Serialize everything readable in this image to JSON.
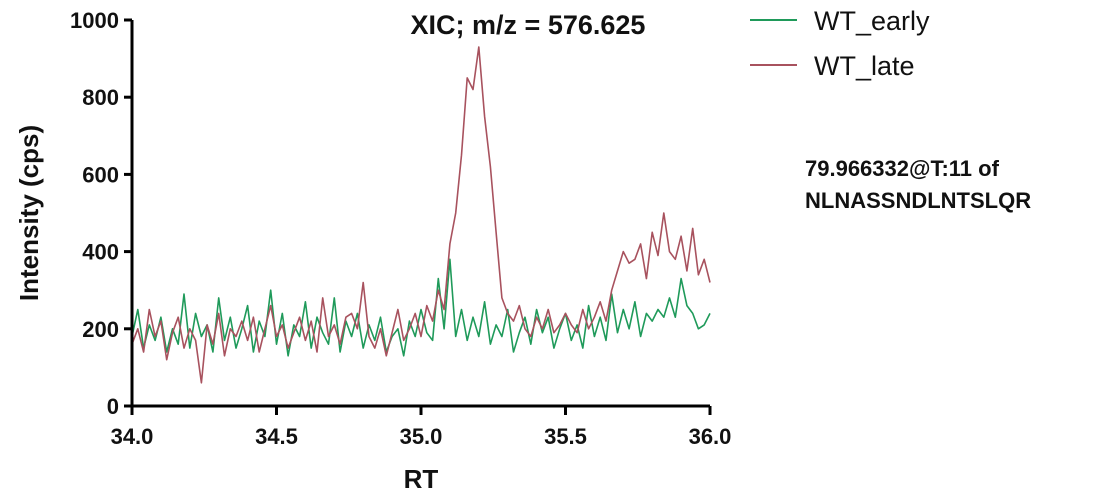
{
  "chart_data": {
    "type": "line",
    "title": "XIC; m/z = 576.625",
    "xlabel": "RT",
    "ylabel": "Intensity (cps)",
    "xlim": [
      34.0,
      36.0
    ],
    "ylim": [
      0,
      1000
    ],
    "xticks": [
      34.0,
      34.5,
      35.0,
      35.5,
      36.0
    ],
    "xtick_labels": [
      "34.0",
      "34.5",
      "35.0",
      "35.5",
      "36.0"
    ],
    "yticks": [
      0,
      200,
      400,
      600,
      800,
      1000
    ],
    "ytick_labels": [
      "0",
      "200",
      "400",
      "600",
      "800",
      "1000"
    ],
    "grid": false,
    "legend_position": "top-right",
    "series": [
      {
        "name": "WT_early",
        "color": "#1f9a5a",
        "x": [
          34.0,
          34.02,
          34.04,
          34.06,
          34.08,
          34.1,
          34.12,
          34.14,
          34.16,
          34.18,
          34.2,
          34.22,
          34.24,
          34.26,
          34.28,
          34.3,
          34.32,
          34.34,
          34.36,
          34.38,
          34.4,
          34.42,
          34.44,
          34.46,
          34.48,
          34.5,
          34.52,
          34.54,
          34.56,
          34.58,
          34.6,
          34.62,
          34.64,
          34.66,
          34.68,
          34.7,
          34.72,
          34.74,
          34.76,
          34.78,
          34.8,
          34.82,
          34.84,
          34.86,
          34.88,
          34.9,
          34.92,
          34.94,
          34.96,
          34.98,
          35.0,
          35.02,
          35.04,
          35.06,
          35.08,
          35.1,
          35.12,
          35.14,
          35.16,
          35.18,
          35.2,
          35.22,
          35.24,
          35.26,
          35.28,
          35.3,
          35.32,
          35.34,
          35.36,
          35.38,
          35.4,
          35.42,
          35.44,
          35.46,
          35.48,
          35.5,
          35.52,
          35.54,
          35.56,
          35.58,
          35.6,
          35.62,
          35.64,
          35.66,
          35.68,
          35.7,
          35.72,
          35.74,
          35.76,
          35.78,
          35.8,
          35.82,
          35.84,
          35.86,
          35.88,
          35.9,
          35.92,
          35.94,
          35.96,
          35.98,
          36.0
        ],
        "y": [
          180,
          250,
          150,
          210,
          170,
          230,
          140,
          200,
          160,
          290,
          150,
          240,
          180,
          210,
          140,
          280,
          170,
          230,
          150,
          200,
          260,
          140,
          220,
          180,
          300,
          160,
          240,
          130,
          210,
          180,
          270,
          150,
          230,
          190,
          160,
          280,
          140,
          220,
          180,
          240,
          150,
          210,
          170,
          230,
          140,
          180,
          200,
          130,
          220,
          180,
          250,
          190,
          170,
          330,
          200,
          380,
          180,
          250,
          170,
          230,
          180,
          270,
          160,
          210,
          180,
          250,
          140,
          190,
          230,
          160,
          250,
          190,
          230,
          150,
          200,
          240,
          170,
          210,
          150,
          260,
          180,
          230,
          170,
          290,
          190,
          250,
          200,
          270,
          180,
          240,
          220,
          250,
          230,
          280,
          230,
          330,
          260,
          240,
          200,
          210,
          240
        ]
      },
      {
        "name": "WT_late",
        "color": "#a8525e",
        "x": [
          34.0,
          34.02,
          34.04,
          34.06,
          34.08,
          34.1,
          34.12,
          34.14,
          34.16,
          34.18,
          34.2,
          34.22,
          34.24,
          34.26,
          34.28,
          34.3,
          34.32,
          34.34,
          34.36,
          34.38,
          34.4,
          34.42,
          34.44,
          34.46,
          34.48,
          34.5,
          34.52,
          34.54,
          34.56,
          34.58,
          34.6,
          34.62,
          34.64,
          34.66,
          34.68,
          34.7,
          34.72,
          34.74,
          34.76,
          34.78,
          34.8,
          34.82,
          34.84,
          34.86,
          34.88,
          34.9,
          34.92,
          34.94,
          34.96,
          34.98,
          35.0,
          35.02,
          35.04,
          35.06,
          35.08,
          35.1,
          35.12,
          35.14,
          35.16,
          35.18,
          35.2,
          35.22,
          35.24,
          35.26,
          35.28,
          35.3,
          35.32,
          35.34,
          35.36,
          35.38,
          35.4,
          35.42,
          35.44,
          35.46,
          35.48,
          35.5,
          35.52,
          35.54,
          35.56,
          35.58,
          35.6,
          35.62,
          35.64,
          35.66,
          35.68,
          35.7,
          35.72,
          35.74,
          35.76,
          35.78,
          35.8,
          35.82,
          35.84,
          35.86,
          35.88,
          35.9,
          35.92,
          35.94,
          35.96,
          35.98,
          36.0
        ],
        "y": [
          160,
          200,
          140,
          250,
          180,
          220,
          120,
          190,
          230,
          150,
          200,
          170,
          60,
          210,
          160,
          240,
          130,
          200,
          180,
          220,
          170,
          230,
          140,
          200,
          260,
          180,
          210,
          150,
          190,
          230,
          170,
          220,
          140,
          280,
          180,
          210,
          160,
          230,
          240,
          200,
          320,
          180,
          150,
          200,
          130,
          190,
          250,
          170,
          200,
          240,
          180,
          260,
          220,
          300,
          250,
          420,
          500,
          650,
          850,
          820,
          930,
          750,
          620,
          450,
          280,
          240,
          220,
          260,
          200,
          180,
          230,
          200,
          250,
          190,
          210,
          240,
          210,
          190,
          250,
          200,
          230,
          270,
          220,
          300,
          350,
          400,
          370,
          380,
          420,
          330,
          450,
          390,
          500,
          400,
          380,
          440,
          350,
          460,
          340,
          380,
          320
        ]
      }
    ],
    "annotation": {
      "line1": "79.966332@T:11 of",
      "line2": "NLNASSNDLNTSLQR"
    }
  }
}
